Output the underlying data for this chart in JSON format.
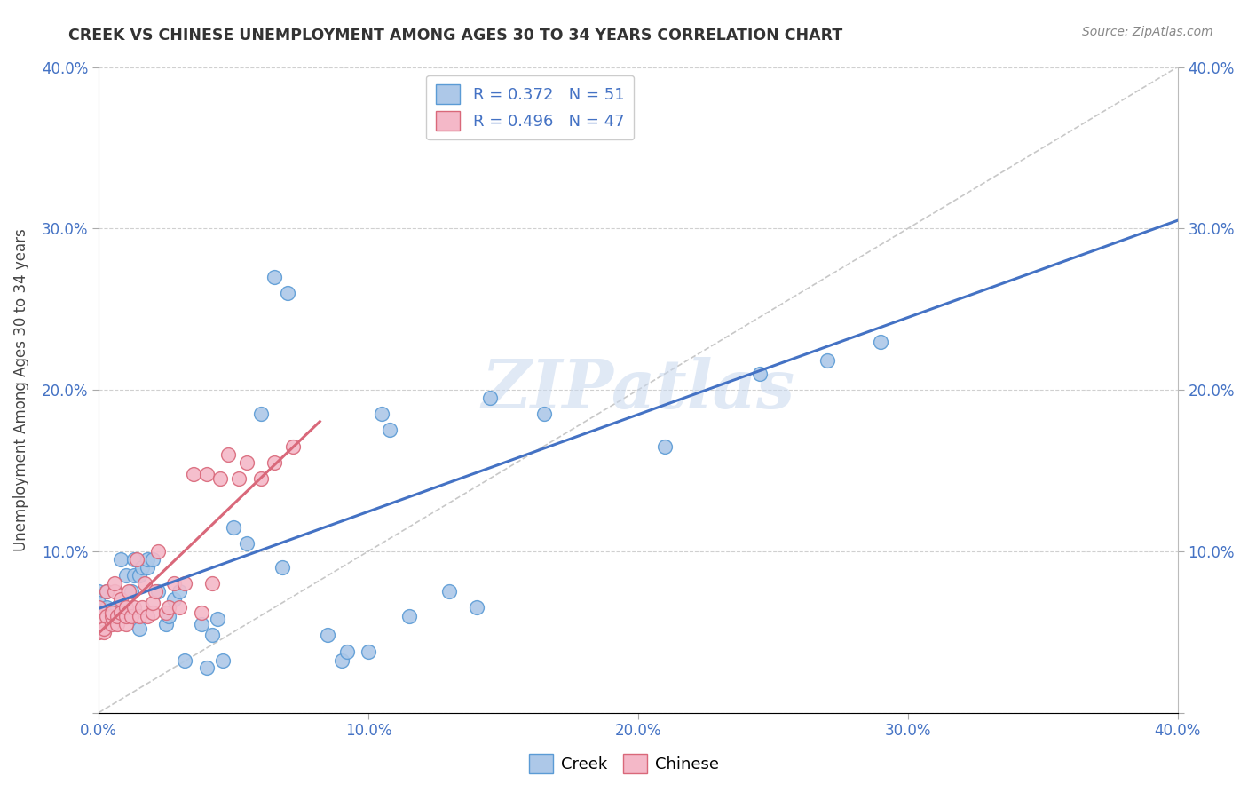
{
  "title": "CREEK VS CHINESE UNEMPLOYMENT AMONG AGES 30 TO 34 YEARS CORRELATION CHART",
  "source": "Source: ZipAtlas.com",
  "ylabel": "Unemployment Among Ages 30 to 34 years",
  "xlim": [
    0.0,
    0.4
  ],
  "ylim": [
    0.0,
    0.4
  ],
  "xticks": [
    0.0,
    0.1,
    0.2,
    0.3,
    0.4
  ],
  "yticks": [
    0.0,
    0.1,
    0.2,
    0.3,
    0.4
  ],
  "xticklabels": [
    "0.0%",
    "10.0%",
    "20.0%",
    "30.0%",
    "40.0%"
  ],
  "yticklabels_left": [
    "",
    "10.0%",
    "20.0%",
    "30.0%",
    "40.0%"
  ],
  "yticklabels_right": [
    "",
    "10.0%",
    "20.0%",
    "30.0%",
    "40.0%"
  ],
  "creek_color": "#adc8e8",
  "creek_edge_color": "#5b9bd5",
  "chinese_color": "#f4b8c8",
  "chinese_edge_color": "#d9687a",
  "creek_R": 0.372,
  "creek_N": 51,
  "chinese_R": 0.496,
  "chinese_N": 47,
  "creek_trend_color": "#4472c4",
  "chinese_trend_color": "#d9687a",
  "diagonal_color": "#c8c8c8",
  "watermark": "ZIPatlas",
  "background_color": "#ffffff",
  "creek_x": [
    0.0,
    0.0,
    0.003,
    0.003,
    0.007,
    0.007,
    0.008,
    0.01,
    0.01,
    0.012,
    0.013,
    0.013,
    0.015,
    0.015,
    0.016,
    0.018,
    0.018,
    0.02,
    0.022,
    0.025,
    0.026,
    0.028,
    0.03,
    0.032,
    0.038,
    0.04,
    0.042,
    0.044,
    0.046,
    0.05,
    0.055,
    0.06,
    0.065,
    0.068,
    0.07,
    0.085,
    0.09,
    0.092,
    0.1,
    0.105,
    0.108,
    0.115,
    0.13,
    0.14,
    0.145,
    0.155,
    0.165,
    0.21,
    0.245,
    0.27,
    0.29
  ],
  "creek_y": [
    0.075,
    0.068,
    0.075,
    0.065,
    0.065,
    0.065,
    0.095,
    0.085,
    0.06,
    0.075,
    0.085,
    0.095,
    0.052,
    0.085,
    0.09,
    0.09,
    0.095,
    0.095,
    0.075,
    0.055,
    0.06,
    0.07,
    0.075,
    0.032,
    0.055,
    0.028,
    0.048,
    0.058,
    0.032,
    0.115,
    0.105,
    0.185,
    0.27,
    0.09,
    0.26,
    0.048,
    0.032,
    0.038,
    0.038,
    0.185,
    0.175,
    0.06,
    0.075,
    0.065,
    0.195,
    0.37,
    0.185,
    0.165,
    0.21,
    0.218,
    0.23
  ],
  "chinese_x": [
    0.0,
    0.0,
    0.0,
    0.002,
    0.002,
    0.003,
    0.003,
    0.005,
    0.005,
    0.005,
    0.006,
    0.006,
    0.007,
    0.007,
    0.008,
    0.008,
    0.01,
    0.01,
    0.01,
    0.011,
    0.012,
    0.013,
    0.014,
    0.015,
    0.016,
    0.017,
    0.018,
    0.02,
    0.02,
    0.021,
    0.022,
    0.025,
    0.026,
    0.028,
    0.03,
    0.032,
    0.035,
    0.038,
    0.04,
    0.042,
    0.045,
    0.048,
    0.052,
    0.055,
    0.06,
    0.065,
    0.072
  ],
  "chinese_y": [
    0.05,
    0.06,
    0.065,
    0.05,
    0.052,
    0.06,
    0.075,
    0.055,
    0.06,
    0.062,
    0.075,
    0.08,
    0.055,
    0.06,
    0.062,
    0.07,
    0.055,
    0.06,
    0.065,
    0.075,
    0.06,
    0.065,
    0.095,
    0.06,
    0.065,
    0.08,
    0.06,
    0.062,
    0.068,
    0.075,
    0.1,
    0.062,
    0.065,
    0.08,
    0.065,
    0.08,
    0.148,
    0.062,
    0.148,
    0.08,
    0.145,
    0.16,
    0.145,
    0.155,
    0.145,
    0.155,
    0.165
  ]
}
